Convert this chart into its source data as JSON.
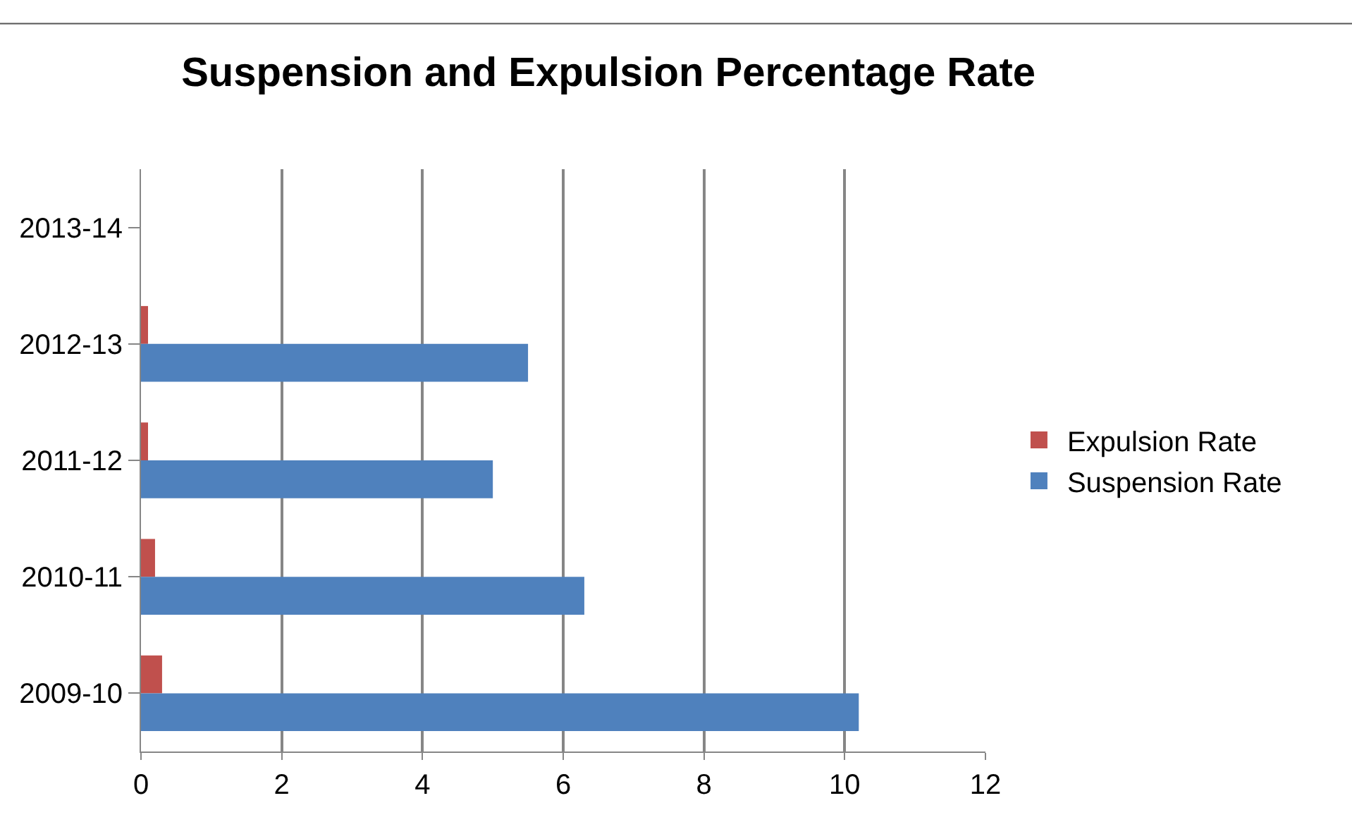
{
  "chart_data": {
    "type": "bar",
    "orientation": "horizontal",
    "title": "Suspension and Expulsion Percentage Rate",
    "categories": [
      "2013-14",
      "2012-13",
      "2011-12",
      "2010-11",
      "2009-10"
    ],
    "series": [
      {
        "name": "Expulsion Rate",
        "color": "#c0504d",
        "values": [
          null,
          0.1,
          0.1,
          0.2,
          0.3
        ]
      },
      {
        "name": "Suspension Rate",
        "color": "#4f81bd",
        "values": [
          null,
          5.5,
          5.0,
          6.3,
          10.2
        ]
      }
    ],
    "xlim": [
      0,
      12
    ],
    "xticks": [
      0,
      2,
      4,
      6,
      8,
      10,
      12
    ],
    "grid": "x",
    "legend": "right"
  }
}
